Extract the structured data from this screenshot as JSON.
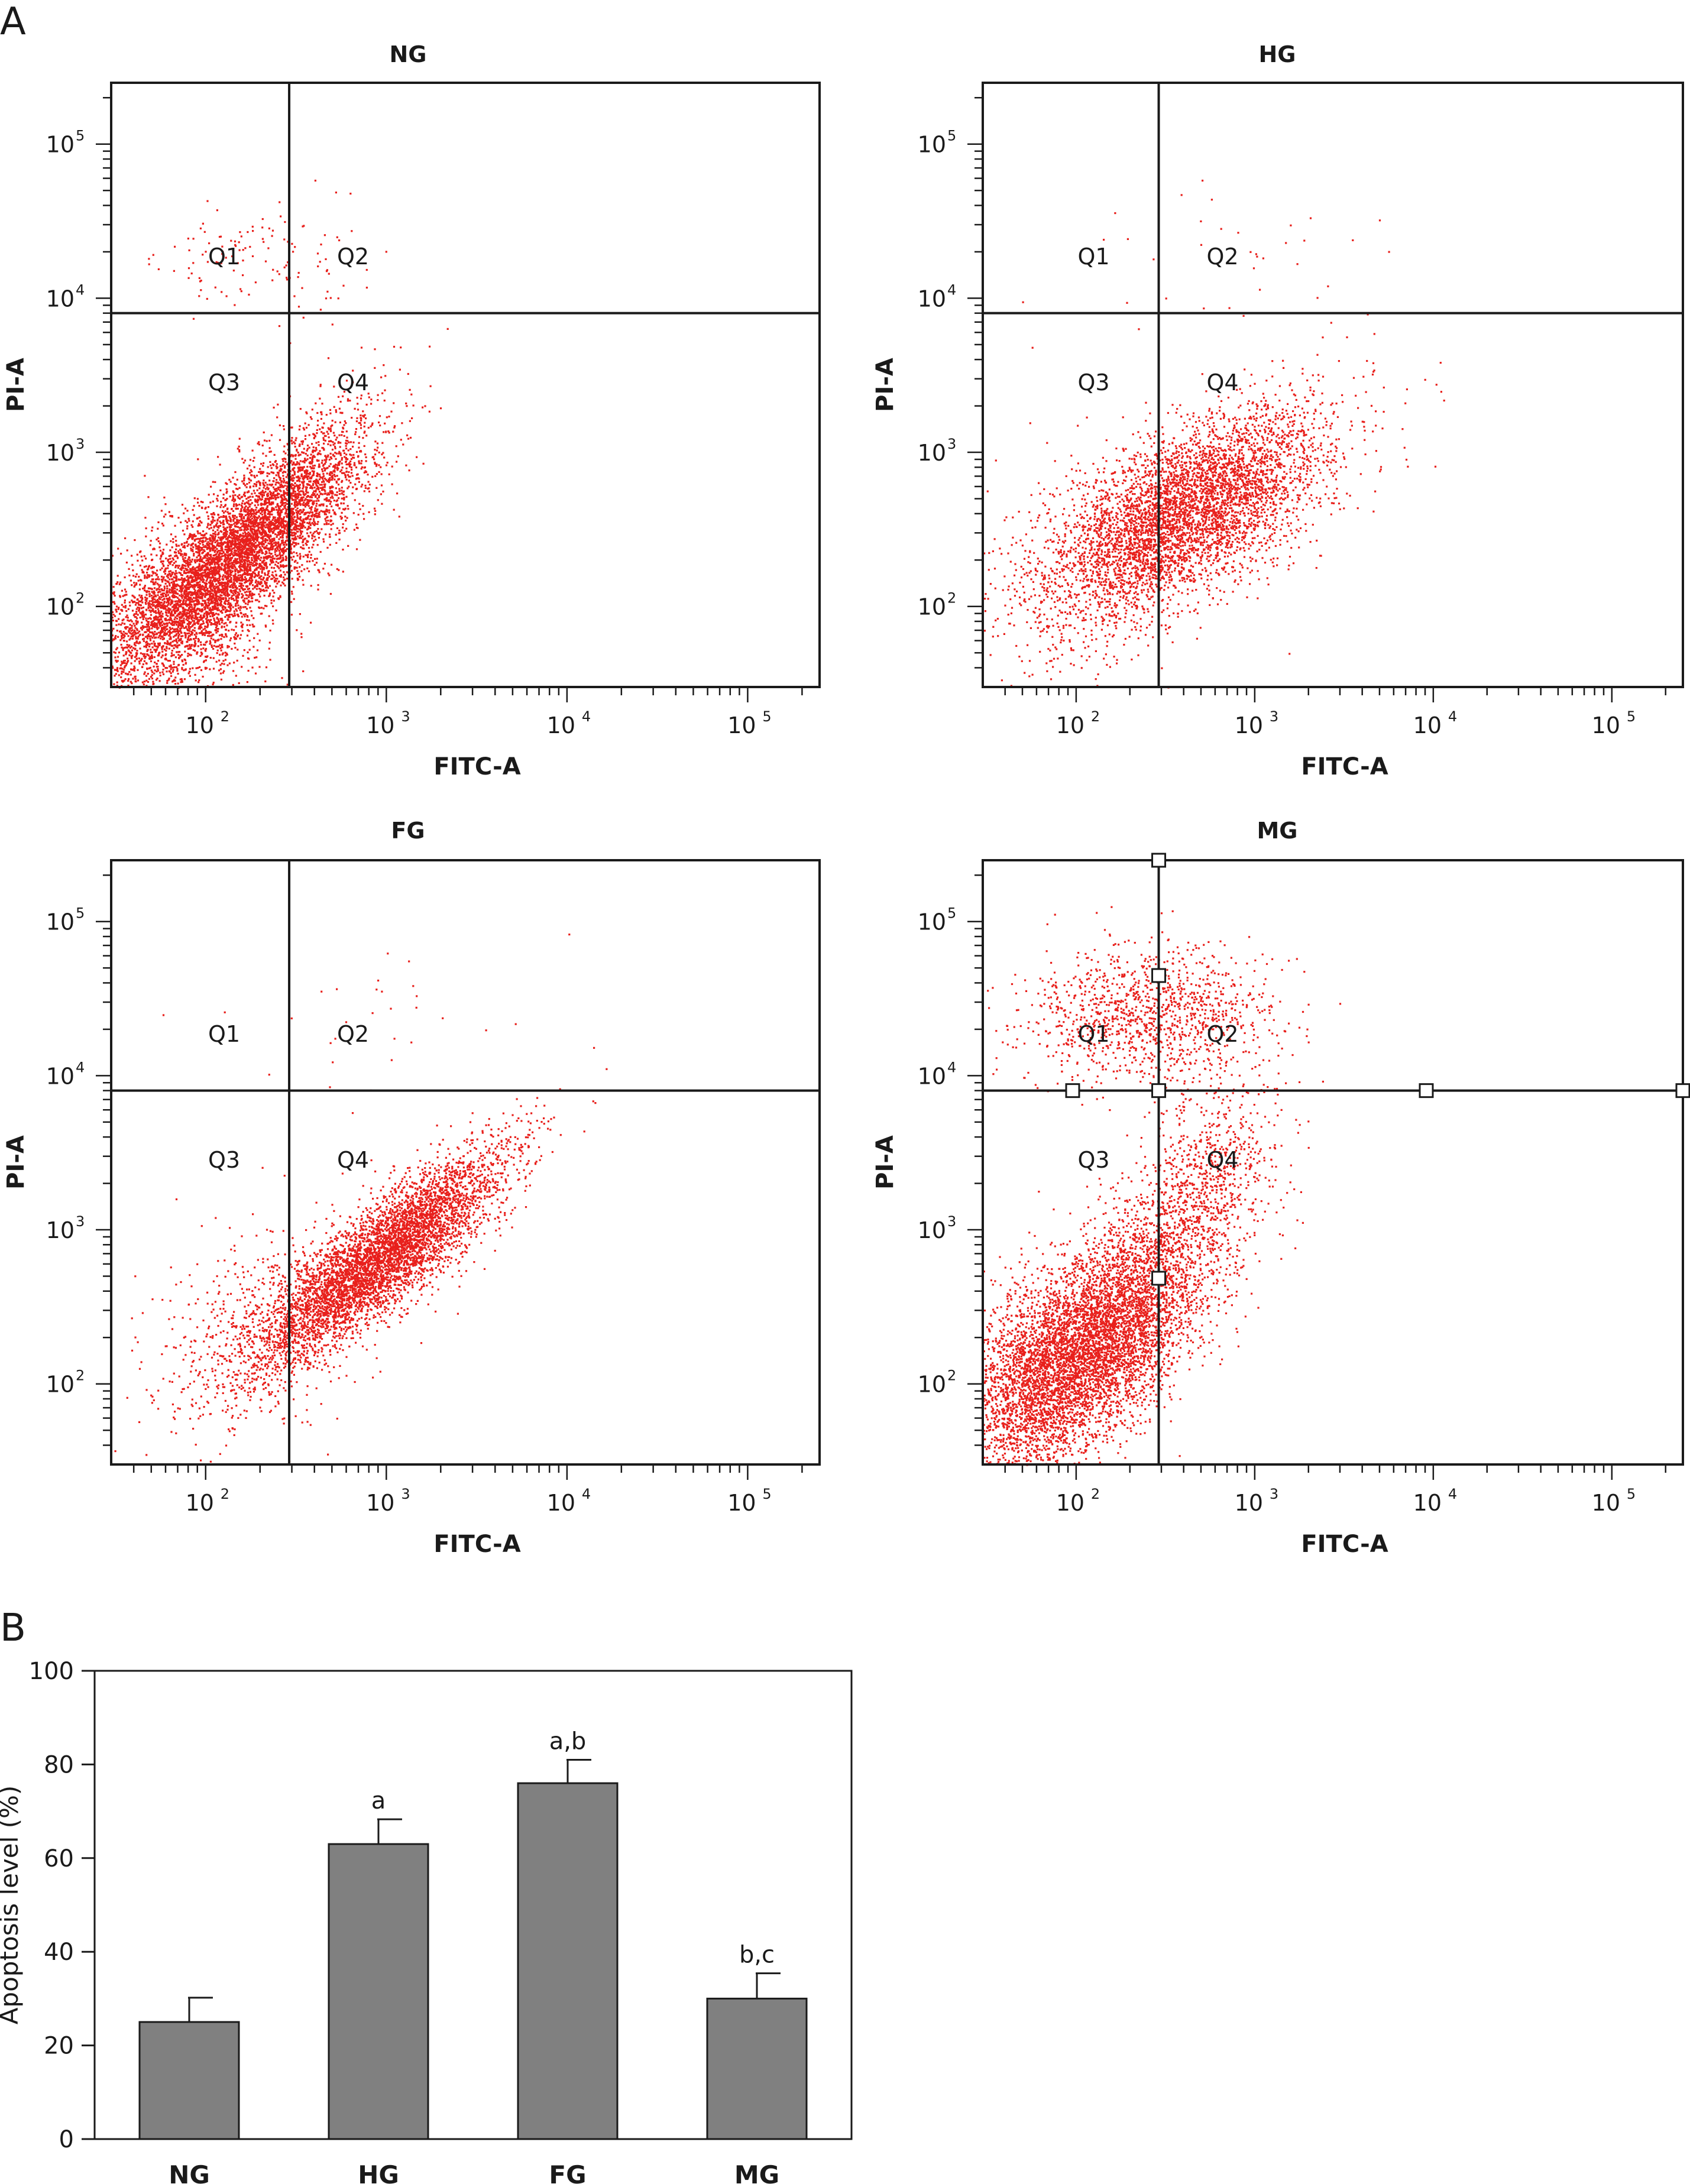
{
  "figure": {
    "panel_a_label": "A",
    "panel_b_label": "B"
  },
  "colors": {
    "dots": "#e8201c",
    "bar": "#808080",
    "frame": "#1a1a1a"
  },
  "chart_data": [
    {
      "type": "scatter",
      "title": "NG",
      "xlabel": "FITC-A",
      "ylabel": "PI-A",
      "xscale": "log",
      "yscale": "log",
      "xlim": [
        30,
        250000
      ],
      "ylim": [
        30,
        250000
      ],
      "x_tick_labels": [
        "10",
        "10",
        "10",
        "10"
      ],
      "x_tick_exponents": [
        "2",
        "3",
        "4",
        "5"
      ],
      "y_tick_labels": [
        "10",
        "10",
        "10",
        "10"
      ],
      "y_tick_exponents": [
        "2",
        "3",
        "4",
        "5"
      ],
      "gate": {
        "x": 290,
        "y": 8000
      },
      "quadrant_labels": [
        "Q1",
        "Q2",
        "Q3",
        "Q4"
      ],
      "clusters": [
        {
          "cx": 140,
          "cy": 210,
          "sx": 0.33,
          "sy": 0.38,
          "rho": 0.82,
          "n": 5200
        },
        {
          "cx": 70,
          "cy": 90,
          "sx": 0.28,
          "sy": 0.3,
          "rho": 0.3,
          "n": 1400
        },
        {
          "cx": 350,
          "cy": 550,
          "sx": 0.22,
          "sy": 0.3,
          "rho": 0.5,
          "n": 700
        },
        {
          "cx": 180,
          "cy": 18000,
          "sx": 0.28,
          "sy": 0.2,
          "rho": 0,
          "n": 130
        }
      ]
    },
    {
      "type": "scatter",
      "title": "HG",
      "xlabel": "FITC-A",
      "ylabel": "PI-A",
      "xscale": "log",
      "yscale": "log",
      "xlim": [
        30,
        250000
      ],
      "ylim": [
        30,
        250000
      ],
      "x_tick_labels": [
        "10",
        "10",
        "10",
        "10"
      ],
      "x_tick_exponents": [
        "2",
        "3",
        "4",
        "5"
      ],
      "y_tick_labels": [
        "10",
        "10",
        "10",
        "10"
      ],
      "y_tick_exponents": [
        "2",
        "3",
        "4",
        "5"
      ],
      "gate": {
        "x": 290,
        "y": 8000
      },
      "quadrant_labels": [
        "Q1",
        "Q2",
        "Q3",
        "Q4"
      ],
      "clusters": [
        {
          "cx": 420,
          "cy": 420,
          "sx": 0.38,
          "sy": 0.33,
          "rho": 0.6,
          "n": 4600
        },
        {
          "cx": 130,
          "cy": 180,
          "sx": 0.33,
          "sy": 0.35,
          "rho": 0.3,
          "n": 500
        },
        {
          "cx": 700,
          "cy": 20000,
          "sx": 0.5,
          "sy": 0.25,
          "rho": 0,
          "n": 35
        }
      ]
    },
    {
      "type": "scatter",
      "title": "FG",
      "xlabel": "FITC-A",
      "ylabel": "PI-A",
      "xscale": "log",
      "yscale": "log",
      "xlim": [
        30,
        250000
      ],
      "ylim": [
        30,
        250000
      ],
      "x_tick_labels": [
        "10",
        "10",
        "10",
        "10"
      ],
      "x_tick_exponents": [
        "2",
        "3",
        "4",
        "5"
      ],
      "y_tick_labels": [
        "10",
        "10",
        "10",
        "10"
      ],
      "y_tick_exponents": [
        "2",
        "3",
        "4",
        "5"
      ],
      "gate": {
        "x": 290,
        "y": 8000
      },
      "quadrant_labels": [
        "Q1",
        "Q2",
        "Q3",
        "Q4"
      ],
      "clusters": [
        {
          "cx": 900,
          "cy": 650,
          "sx": 0.34,
          "sy": 0.34,
          "rho": 0.85,
          "n": 5200
        },
        {
          "cx": 170,
          "cy": 200,
          "sx": 0.32,
          "sy": 0.38,
          "rho": 0.4,
          "n": 500
        },
        {
          "cx": 900,
          "cy": 25000,
          "sx": 0.45,
          "sy": 0.3,
          "rho": 0,
          "n": 30
        }
      ]
    },
    {
      "type": "scatter",
      "title": "MG",
      "xlabel": "FITC-A",
      "ylabel": "PI-A",
      "xscale": "log",
      "yscale": "log",
      "xlim": [
        30,
        250000
      ],
      "ylim": [
        30,
        250000
      ],
      "x_tick_labels": [
        "10",
        "10",
        "10",
        "10"
      ],
      "x_tick_exponents": [
        "2",
        "3",
        "4",
        "5"
      ],
      "y_tick_labels": [
        "10",
        "10",
        "10",
        "10"
      ],
      "y_tick_exponents": [
        "2",
        "3",
        "4",
        "5"
      ],
      "gate": {
        "x": 290,
        "y": 8000
      },
      "gate_handles": true,
      "quadrant_labels": [
        "Q1",
        "Q2",
        "Q3",
        "Q4"
      ],
      "clusters": [
        {
          "cx": 130,
          "cy": 200,
          "sx": 0.32,
          "sy": 0.38,
          "rho": 0.6,
          "n": 5200
        },
        {
          "cx": 60,
          "cy": 100,
          "sx": 0.25,
          "sy": 0.35,
          "rho": 0.2,
          "n": 1300
        },
        {
          "cx": 500,
          "cy": 2000,
          "sx": 0.22,
          "sy": 0.35,
          "rho": 0.4,
          "n": 900
        },
        {
          "cx": 250,
          "cy": 25000,
          "sx": 0.35,
          "sy": 0.22,
          "rho": 0,
          "n": 1200
        }
      ]
    },
    {
      "type": "bar",
      "categories": [
        "NG",
        "HG",
        "FG",
        "MG"
      ],
      "values": [
        25,
        63,
        76,
        30
      ],
      "errors": [
        5.2,
        5.3,
        5.0,
        5.4
      ],
      "significance": [
        "",
        "a",
        "a,b",
        "b,c"
      ],
      "ylabel": "Apoptosis level (%)",
      "ylim": [
        0,
        100
      ],
      "y_ticks": [
        "0",
        "20",
        "40",
        "60",
        "80",
        "100"
      ],
      "grid": false
    }
  ]
}
